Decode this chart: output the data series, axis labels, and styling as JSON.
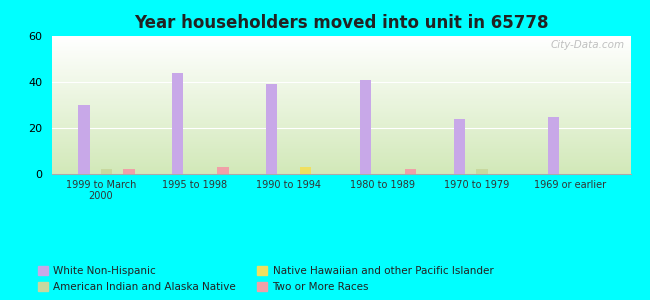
{
  "title": "Year householders moved into unit in 65778",
  "background_color": "#00FFFF",
  "categories": [
    "1999 to March\n2000",
    "1995 to 1998",
    "1990 to 1994",
    "1980 to 1989",
    "1970 to 1979",
    "1969 or earlier"
  ],
  "series": {
    "White Non-Hispanic": {
      "color": "#c8a8e8",
      "values": [
        30,
        44,
        39,
        41,
        24,
        25
      ]
    },
    "American Indian and Alaska Native": {
      "color": "#c8d89f",
      "values": [
        2,
        0,
        0,
        0,
        2,
        0
      ]
    },
    "Native Hawaiian and other Pacific Islander": {
      "color": "#f0e060",
      "values": [
        0,
        0,
        3,
        0,
        0,
        0
      ]
    },
    "Two or More Races": {
      "color": "#f0a0a8",
      "values": [
        2,
        3,
        0,
        2,
        0,
        0
      ]
    }
  },
  "ylim": [
    0,
    60
  ],
  "yticks": [
    0,
    20,
    40,
    60
  ],
  "bar_width": 0.12,
  "watermark": "City-Data.com",
  "legend_order": [
    "White Non-Hispanic",
    "American Indian and Alaska Native",
    "Native Hawaiian and other Pacific Islander",
    "Two or More Races"
  ]
}
